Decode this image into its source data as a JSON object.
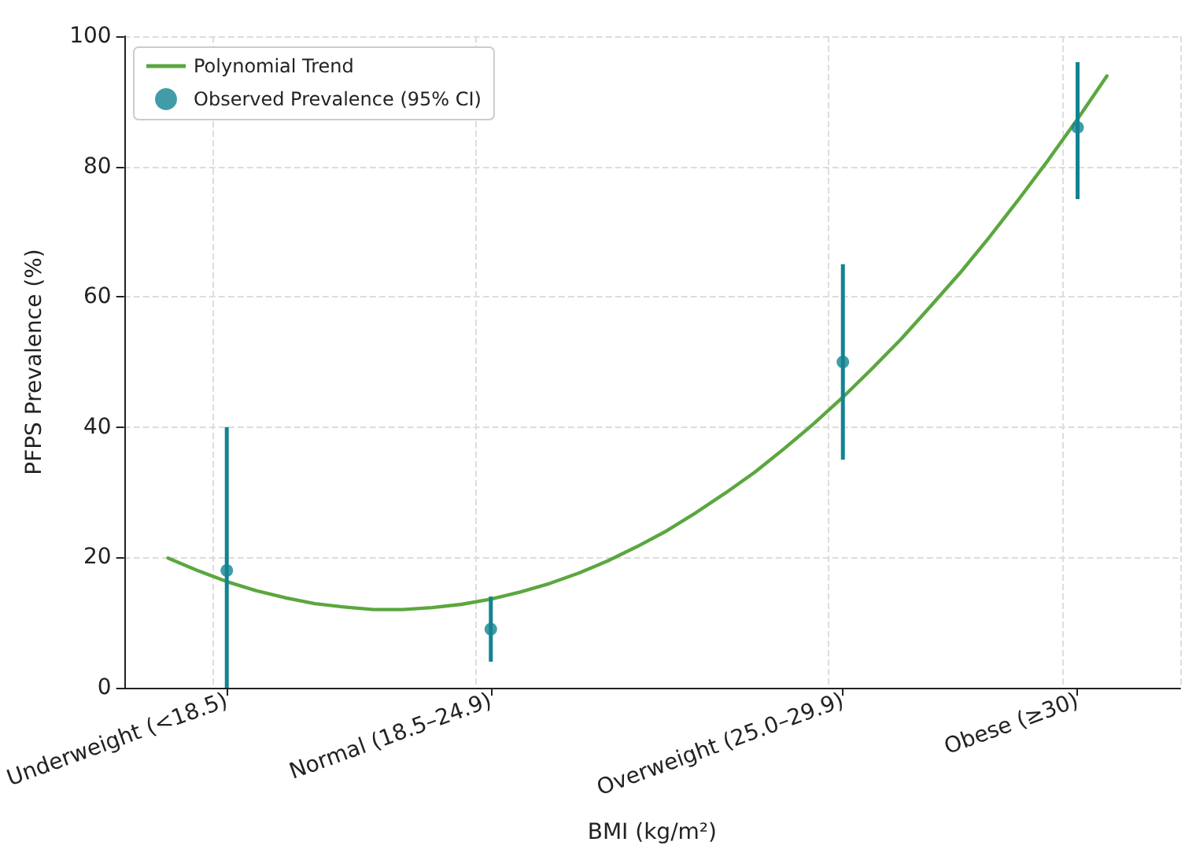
{
  "chart_data": {
    "type": "scatter",
    "xlabel": "BMI (kg/m²)",
    "ylabel": "PFPS Prevalence (%)",
    "categories": [
      null,
      null,
      null,
      "Underweight (<18.5)",
      null,
      null,
      null,
      null,
      null,
      null,
      null,
      null,
      "Normal (18.5–24.9)",
      null,
      null,
      null,
      null,
      null,
      null,
      null,
      null,
      null,
      null,
      null,
      "Overweight (25.0–29.9)",
      null,
      null,
      null,
      null,
      null,
      null,
      null,
      "Obese (≥30)",
      null,
      null,
      null
    ],
    "ylim": [
      0,
      100
    ],
    "yticks": [
      0,
      20,
      40,
      60,
      80,
      100
    ],
    "grid": true,
    "legend": "top left",
    "series": [
      {
        "type": "line",
        "name": "Polynomial Trend",
        "color": "#5ba73f",
        "marker": "none",
        "line_style": "solid",
        "values": [
          null,
          19.9,
          18.0,
          16.3,
          14.9,
          13.8,
          12.9,
          12.4,
          12.0,
          12.0,
          12.3,
          12.8,
          13.6,
          14.7,
          16.0,
          17.6,
          19.5,
          21.7,
          24.1,
          26.9,
          29.9,
          33.1,
          36.7,
          40.5,
          44.6,
          49.0,
          53.6,
          58.6,
          63.7,
          69.2,
          75.0,
          81.0,
          87.3,
          93.9,
          null,
          null
        ]
      },
      {
        "name": "Observed Prevalence (95% CI)",
        "color": "#138391",
        "marker": "circle",
        "values": [
          null,
          null,
          null,
          18,
          null,
          null,
          null,
          null,
          null,
          null,
          null,
          null,
          9,
          null,
          null,
          null,
          null,
          null,
          null,
          null,
          null,
          null,
          null,
          null,
          50,
          null,
          null,
          null,
          null,
          null,
          null,
          null,
          86,
          null,
          null,
          null
        ],
        "errors": [
          null,
          null,
          null,
          [
            0,
            40
          ],
          null,
          null,
          null,
          null,
          null,
          null,
          null,
          null,
          [
            4,
            14
          ],
          null,
          null,
          null,
          null,
          null,
          null,
          null,
          null,
          null,
          null,
          null,
          [
            35,
            65
          ],
          null,
          null,
          null,
          null,
          null,
          null,
          null,
          [
            75,
            96
          ],
          null,
          null,
          null
        ]
      }
    ]
  }
}
